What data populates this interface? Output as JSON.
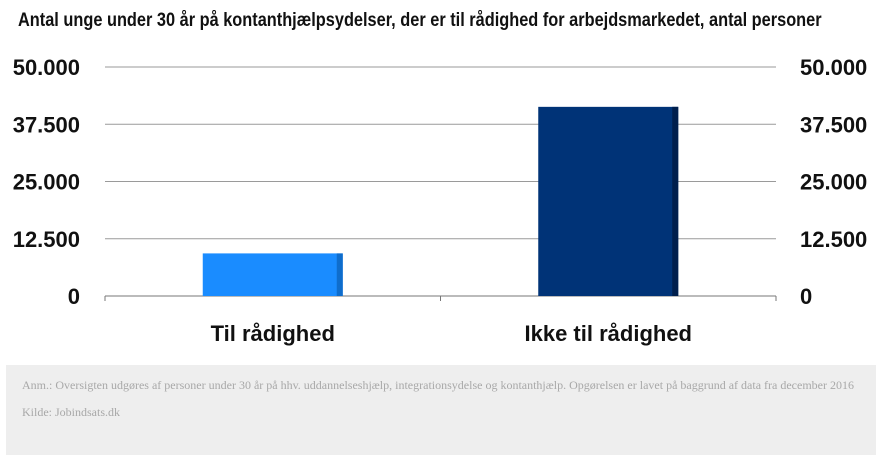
{
  "chart_data": {
    "type": "bar",
    "title": "Antal unge under 30 år på kontanthjælpsydelser, der er til rådighed for arbejdsmarkedet, antal personer",
    "categories": [
      "Til rådighed",
      "Ikke til rådighed"
    ],
    "values": [
      9300,
      41300
    ],
    "ylim": [
      0,
      50000
    ],
    "yticks": [
      0,
      12500,
      25000,
      37500,
      50000
    ],
    "ytick_labels": [
      "0",
      "12.500",
      "25.000",
      "37.500",
      "50.000"
    ],
    "colors": [
      "#1a8cff",
      "#003377"
    ],
    "bar_edge_colors": [
      "#0f6dcc",
      "#001f4d"
    ],
    "grid": true,
    "dual_axis_labels": true
  },
  "footer": {
    "note": "Anm.: Oversigten udgøres af personer under 30 år på hhv. uddannelseshjælp, integrationsydelse og kontanthjælp. Opgørelsen er lavet på baggrund af data fra december 2016",
    "source": "Kilde: Jobindsats.dk"
  }
}
